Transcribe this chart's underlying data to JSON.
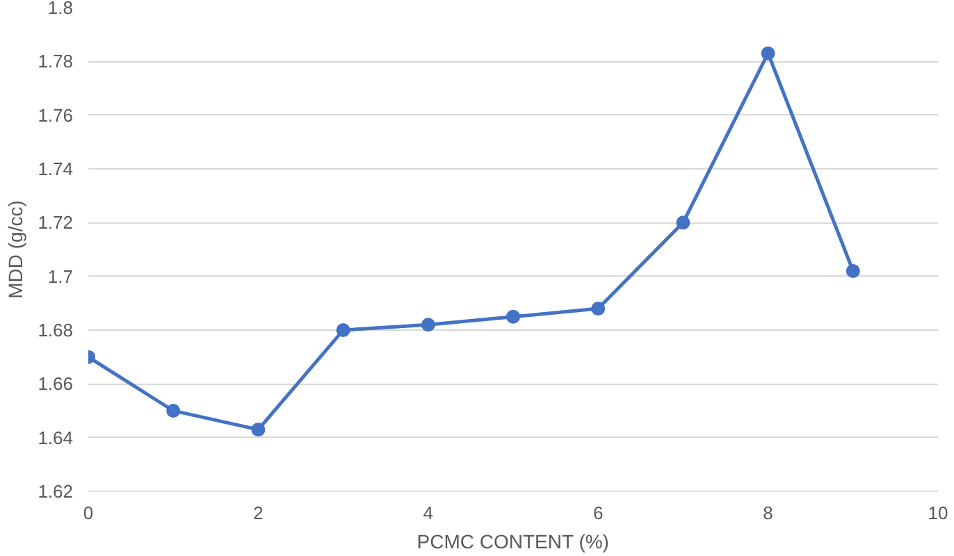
{
  "chart_data": {
    "type": "line",
    "xlabel": "PCMC CONTENT (%)",
    "ylabel": "MDD (g/cc)",
    "x": [
      0,
      1,
      2,
      3,
      4,
      5,
      6,
      7,
      8,
      9
    ],
    "series": [
      {
        "color": "#4472c4",
        "values": [
          1.67,
          1.65,
          1.643,
          1.68,
          1.682,
          1.685,
          1.688,
          1.72,
          1.783,
          1.702
        ]
      }
    ],
    "xlim": [
      0,
      10
    ],
    "xticks": [
      0,
      2,
      4,
      6,
      8,
      10
    ],
    "ylim": [
      1.62,
      1.8
    ],
    "yticks": [
      1.62,
      1.64,
      1.66,
      1.68,
      1.7,
      1.72,
      1.74,
      1.76,
      1.78,
      1.8
    ],
    "grid": "y",
    "marker": "circle",
    "line_style": "solid"
  }
}
